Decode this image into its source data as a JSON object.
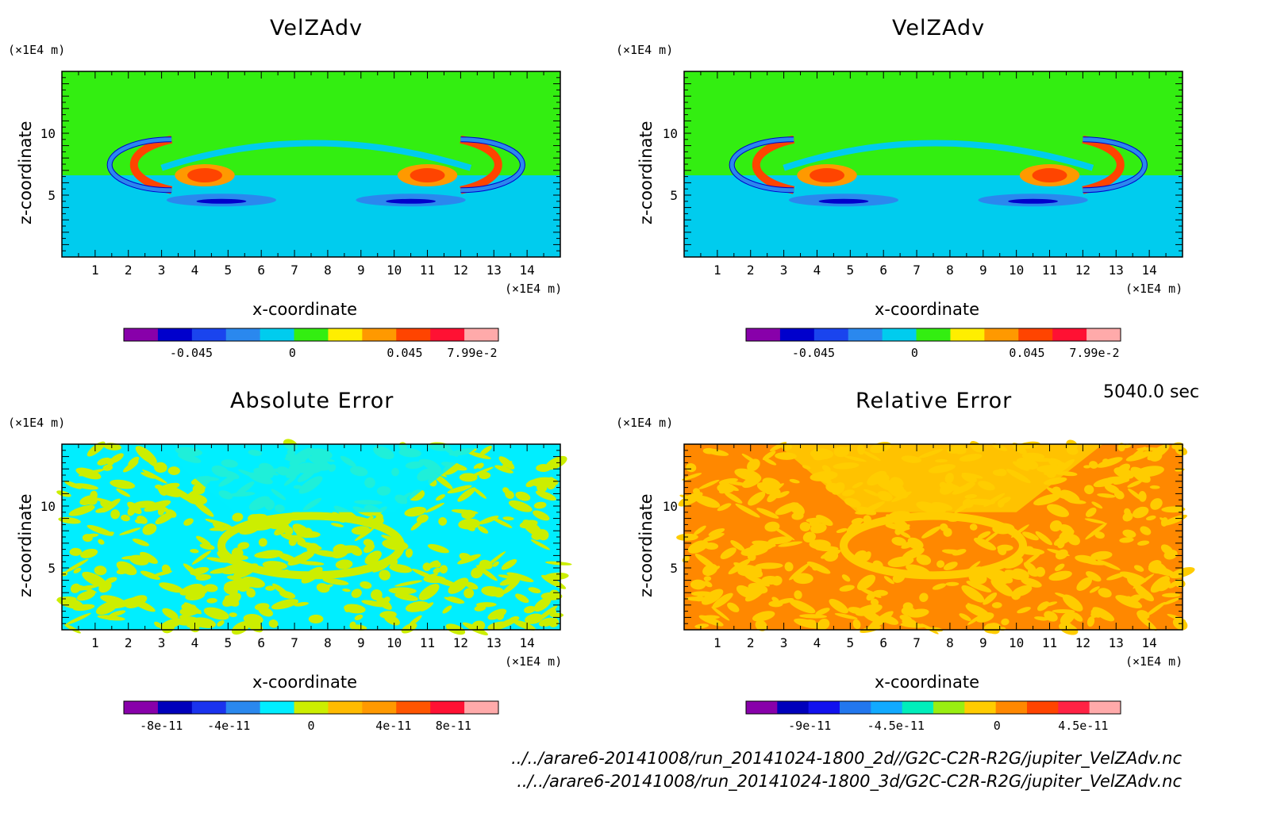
{
  "chart_data": [
    {
      "type": "heatmap",
      "title": "VelZAdv",
      "xlabel": "x-coordinate",
      "ylabel": "z-coordinate",
      "x_unit": "(×1E4 m)",
      "y_unit": "(×1E4 m)",
      "xlim": [
        0,
        15
      ],
      "ylim": [
        0,
        15
      ],
      "x_ticks": [
        "1",
        "2",
        "3",
        "4",
        "5",
        "6",
        "7",
        "8",
        "9",
        "10",
        "11",
        "12",
        "13",
        "14"
      ],
      "y_ticks": [
        "5",
        "10"
      ],
      "colorbar": {
        "colors": [
          "#8800aa",
          "#0000cc",
          "#1a44ee",
          "#2a88ee",
          "#00ccee",
          "#33ee11",
          "#ffee00",
          "#ff9900",
          "#ff4400",
          "#ff1133",
          "#ffaaaa"
        ],
        "tick_labels": [
          "-0.045",
          "0",
          "0.045",
          "7.99e-2"
        ]
      }
    },
    {
      "type": "heatmap",
      "title": "VelZAdv",
      "xlabel": "x-coordinate",
      "ylabel": "z-coordinate",
      "x_unit": "(×1E4 m)",
      "y_unit": "(×1E4 m)",
      "xlim": [
        0,
        15
      ],
      "ylim": [
        0,
        15
      ],
      "x_ticks": [
        "1",
        "2",
        "3",
        "4",
        "5",
        "6",
        "7",
        "8",
        "9",
        "10",
        "11",
        "12",
        "13",
        "14"
      ],
      "y_ticks": [
        "5",
        "10"
      ],
      "colorbar": {
        "colors": [
          "#8800aa",
          "#0000cc",
          "#1a44ee",
          "#2a88ee",
          "#00ccee",
          "#33ee11",
          "#ffee00",
          "#ff9900",
          "#ff4400",
          "#ff1133",
          "#ffaaaa"
        ],
        "tick_labels": [
          "-0.045",
          "0",
          "0.045",
          "7.99e-2"
        ]
      }
    },
    {
      "type": "heatmap",
      "title": "Absolute Error",
      "xlabel": "x-coordinate",
      "ylabel": "z-coordinate",
      "x_unit": "(×1E4 m)",
      "y_unit": "(×1E4 m)",
      "xlim": [
        0,
        15
      ],
      "ylim": [
        0,
        15
      ],
      "x_ticks": [
        "1",
        "2",
        "3",
        "4",
        "5",
        "6",
        "7",
        "8",
        "9",
        "10",
        "11",
        "12",
        "13",
        "14"
      ],
      "y_ticks": [
        "5",
        "10"
      ],
      "colorbar": {
        "colors": [
          "#8800aa",
          "#0000bb",
          "#1a33ee",
          "#2a88ee",
          "#00eeff",
          "#ccee00",
          "#ffbb00",
          "#ff9900",
          "#ff5500",
          "#ff1133",
          "#ffaaaa"
        ],
        "tick_labels": [
          "-8e-11",
          "-4e-11",
          "0",
          "4e-11",
          "8e-11"
        ]
      }
    },
    {
      "type": "heatmap",
      "title": "Relative Error",
      "xlabel": "x-coordinate",
      "ylabel": "z-coordinate",
      "x_unit": "(×1E4 m)",
      "y_unit": "(×1E4 m)",
      "xlim": [
        0,
        15
      ],
      "ylim": [
        0,
        15
      ],
      "x_ticks": [
        "1",
        "2",
        "3",
        "4",
        "5",
        "6",
        "7",
        "8",
        "9",
        "10",
        "11",
        "12",
        "13",
        "14"
      ],
      "y_ticks": [
        "5",
        "10"
      ],
      "colorbar": {
        "colors": [
          "#8800aa",
          "#0000bb",
          "#1111ee",
          "#2277ee",
          "#11aaff",
          "#00eebb",
          "#99ee11",
          "#ffcc00",
          "#ff8800",
          "#ff4400",
          "#ff2244",
          "#ffaaaa"
        ],
        "tick_labels": [
          "-9e-11",
          "-4.5e-11",
          "0",
          "4.5e-11"
        ]
      }
    }
  ],
  "timestamp": "5040.0 sec",
  "file_paths": [
    "../../arare6-20141008/run_20141024-1800_2d//G2C-C2R-R2G/jupiter_VelZAdv.nc",
    "../../arare6-20141008/run_20141024-1800_3d/G2C-C2R-R2G/jupiter_VelZAdv.nc"
  ]
}
